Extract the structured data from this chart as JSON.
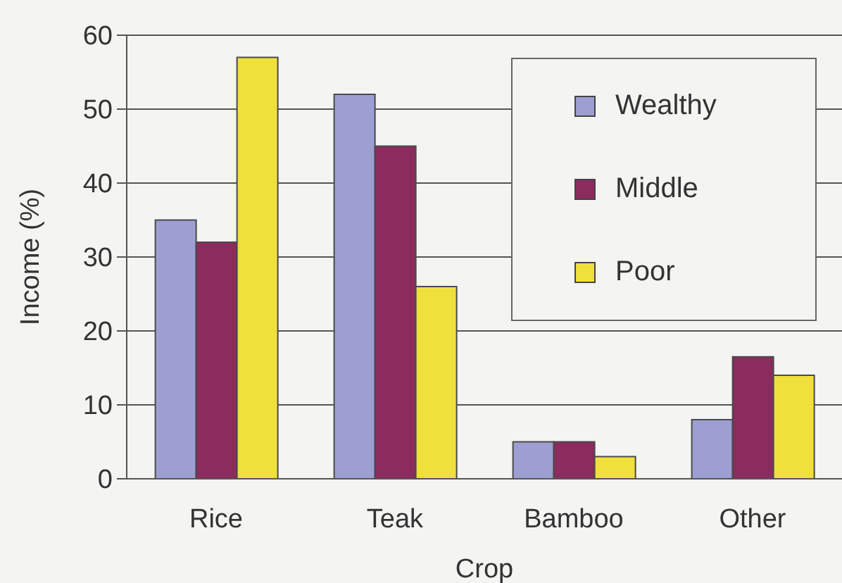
{
  "chart_data": {
    "type": "bar",
    "xlabel": "Crop",
    "ylabel": "Income (%)",
    "categories": [
      "Rice",
      "Teak",
      "Bamboo",
      "Other"
    ],
    "series": [
      {
        "name": "Wealthy",
        "color": "#9d9fd2",
        "values": [
          35,
          52,
          5,
          8
        ]
      },
      {
        "name": "Middle",
        "color": "#8c2b5e",
        "values": [
          32,
          45,
          5,
          16.5
        ]
      },
      {
        "name": "Poor",
        "color": "#f0e03c",
        "values": [
          57,
          26,
          3,
          14
        ]
      }
    ],
    "ylim": [
      0,
      60
    ],
    "yticks": [
      0,
      10,
      20,
      30,
      40,
      50,
      60
    ],
    "grid": "y",
    "legend": "top right"
  }
}
